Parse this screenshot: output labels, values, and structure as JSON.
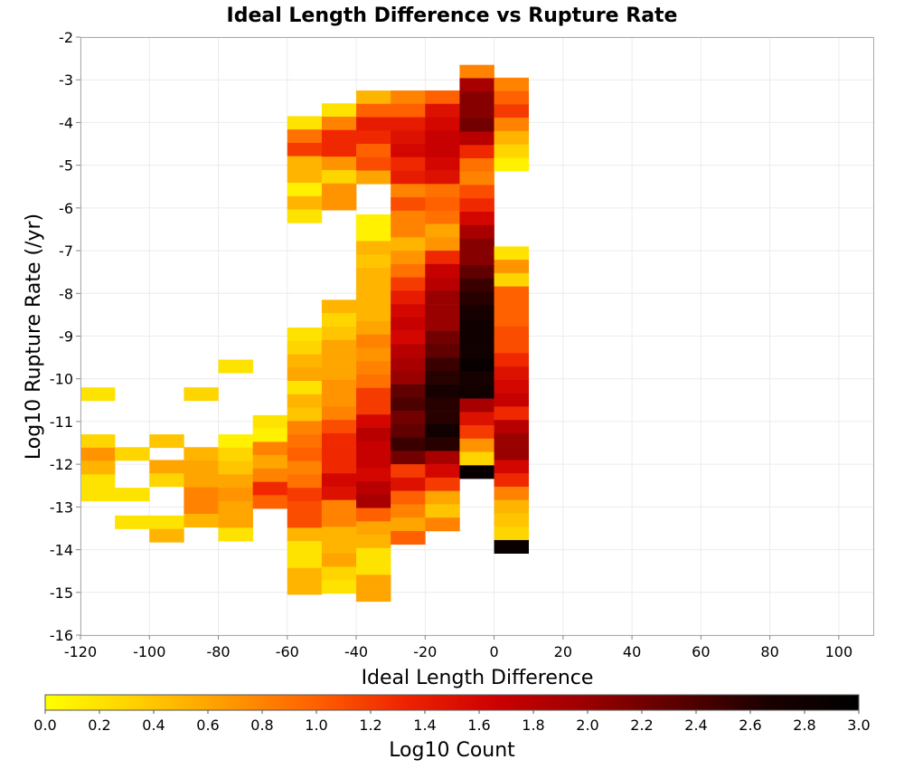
{
  "chart_data": {
    "type": "heatmap",
    "title": "Ideal Length Difference vs Rupture Rate",
    "xlabel": "Ideal Length Difference",
    "ylabel": "Log10 Rupture Rate (/yr)",
    "xlim": [
      -120,
      110
    ],
    "ylim": [
      -16,
      -2
    ],
    "x_ticks": [
      "-120",
      "-100",
      "-80",
      "-60",
      "-40",
      "-20",
      "0",
      "20",
      "40",
      "60",
      "80",
      "100"
    ],
    "y_ticks": [
      "-2",
      "-3",
      "-4",
      "-5",
      "-6",
      "-7",
      "-8",
      "-9",
      "-10",
      "-11",
      "-12",
      "-13",
      "-14",
      "-15",
      "-16"
    ],
    "x_bin_width": 10,
    "y_bin_width": 0.3125,
    "grid": true,
    "colorbar": {
      "label": "Log10 Count",
      "range": [
        0.0,
        3.0
      ],
      "ticks": [
        "0.0",
        "0.2",
        "0.4",
        "0.6",
        "0.8",
        "1.0",
        "1.2",
        "1.4",
        "1.6",
        "1.8",
        "2.0",
        "2.2",
        "2.4",
        "2.6",
        "2.8",
        "3.0"
      ],
      "colors": [
        "#ffff00",
        "#ffd000",
        "#ff9a00",
        "#ff6000",
        "#ee2200",
        "#cc0000",
        "#990000",
        "#5a0000",
        "#1a0000",
        "#000000"
      ]
    },
    "columns": [
      {
        "x0": -120,
        "y_top": -10.2,
        "values": [
          0.2
        ]
      },
      {
        "x0": -120,
        "y_top": -11.3,
        "values": [
          0.3,
          0.7,
          0.5,
          0.2,
          0.2
        ]
      },
      {
        "x0": -110,
        "y_top": -11.6,
        "values": [
          0.3
        ]
      },
      {
        "x0": -110,
        "y_top": -12.55,
        "values": [
          0.2
        ]
      },
      {
        "x0": -110,
        "y_top": -13.2,
        "values": [
          0.2
        ]
      },
      {
        "x0": -100,
        "y_top": -11.3,
        "values": [
          0.4
        ]
      },
      {
        "x0": -100,
        "y_top": -11.9,
        "values": [
          0.6,
          0.3
        ]
      },
      {
        "x0": -100,
        "y_top": -13.2,
        "values": [
          0.2,
          0.5
        ]
      },
      {
        "x0": -90,
        "y_top": -10.2,
        "values": [
          0.3
        ]
      },
      {
        "x0": -90,
        "y_top": -11.6,
        "values": [
          0.5,
          0.6,
          0.6,
          0.8,
          0.8,
          0.5
        ]
      },
      {
        "x0": -80,
        "y_top": -9.55,
        "values": [
          0.2
        ]
      },
      {
        "x0": -80,
        "y_top": -11.3,
        "values": [
          0.1,
          0.3,
          0.4,
          0.6,
          0.7,
          0.6,
          0.6,
          0.2
        ]
      },
      {
        "x0": -70,
        "y_top": -10.85,
        "values": [
          0.2,
          0.1,
          0.8,
          0.6,
          0.8,
          1.3,
          1.0
        ]
      },
      {
        "x0": -60,
        "y_top": -3.85,
        "values": [
          0.2,
          0.9,
          1.2,
          0.5,
          0.5,
          0.1,
          0.5,
          0.2
        ]
      },
      {
        "x0": -60,
        "y_top": -8.8,
        "values": [
          0.2,
          0.3,
          0.5,
          0.6,
          0.2,
          0.5,
          0.4,
          0.8,
          0.9,
          1.0,
          0.8,
          0.9,
          1.2,
          1.1,
          1.1,
          0.5,
          0.2,
          0.2,
          0.5,
          0.5
        ]
      },
      {
        "x0": -50,
        "y_top": -3.55,
        "values": [
          0.2,
          0.8,
          1.3,
          1.3,
          0.7,
          0.3,
          0.7,
          0.7
        ]
      },
      {
        "x0": -50,
        "y_top": -8.15,
        "values": [
          0.5,
          0.3,
          0.4,
          0.6,
          0.6,
          0.6,
          0.7,
          0.7,
          0.8,
          1.1,
          1.3,
          1.3,
          1.3,
          1.6,
          1.5,
          0.8,
          0.8,
          0.5,
          0.5,
          0.6,
          0.3,
          0.2
        ]
      },
      {
        "x0": -40,
        "y_top": -3.25,
        "values": [
          0.5,
          1.0,
          1.4,
          1.3,
          1.0,
          1.1,
          0.6
        ]
      },
      {
        "x0": -40,
        "y_top": -6.15,
        "values": [
          0.1,
          0.1,
          0.5,
          0.4,
          0.5,
          0.5,
          0.5,
          0.5,
          0.6,
          0.8,
          0.7,
          0.8,
          0.9,
          1.2,
          1.2,
          1.6,
          1.8,
          1.7,
          1.7,
          1.6,
          1.8,
          1.9,
          1.0,
          0.6,
          0.5,
          0.2,
          0.2,
          0.6,
          0.6
        ]
      },
      {
        "x0": -30,
        "y_top": -3.25,
        "values": [
          0.8,
          1.0,
          1.4,
          1.5,
          1.6,
          1.3,
          1.4,
          0.8,
          1.1,
          0.8,
          0.8,
          0.5,
          0.7,
          0.9,
          1.2,
          1.4,
          1.6,
          1.7,
          1.6,
          1.8,
          1.9,
          2.0,
          2.3,
          2.4,
          2.2,
          2.3,
          2.5,
          2.2,
          1.2,
          1.5,
          1.0,
          0.8,
          0.6,
          1.0
        ]
      },
      {
        "x0": -20,
        "y_top": -3.25,
        "values": [
          1.0,
          1.5,
          1.6,
          1.7,
          1.7,
          1.6,
          1.5,
          0.9,
          1.0,
          0.9,
          0.6,
          0.7,
          1.3,
          1.7,
          1.8,
          2.0,
          2.0,
          2.0,
          2.2,
          2.3,
          2.5,
          2.6,
          2.7,
          2.6,
          2.6,
          2.8,
          2.6,
          1.9,
          1.6,
          1.2,
          0.6,
          0.4,
          0.8
        ]
      },
      {
        "x0": -10,
        "y_top": -2.65,
        "values": [
          0.8,
          1.9,
          2.1,
          2.1,
          2.2,
          1.8,
          1.3,
          0.9,
          0.8,
          1.1,
          1.3,
          1.6,
          1.9,
          2.1,
          2.1,
          2.3,
          2.5,
          2.6,
          2.7,
          2.8,
          2.8,
          2.8,
          2.9,
          2.7,
          2.8,
          1.9,
          1.5,
          1.2,
          0.7,
          0.3,
          2.9
        ]
      },
      {
        "x0": 0,
        "y_top": -2.95,
        "values": [
          0.8,
          1.0,
          1.2,
          0.8,
          0.5,
          0.3,
          0.1
        ]
      },
      {
        "x0": 0,
        "y_top": -6.9,
        "values": [
          0.2,
          0.7,
          0.3,
          1.0,
          1.0,
          1.0,
          1.1,
          1.1,
          1.3,
          1.5,
          1.6,
          1.7,
          1.3,
          1.8,
          2.0,
          2.0,
          1.6,
          1.3,
          0.8,
          0.5,
          0.4,
          0.3,
          2.9
        ]
      }
    ]
  }
}
